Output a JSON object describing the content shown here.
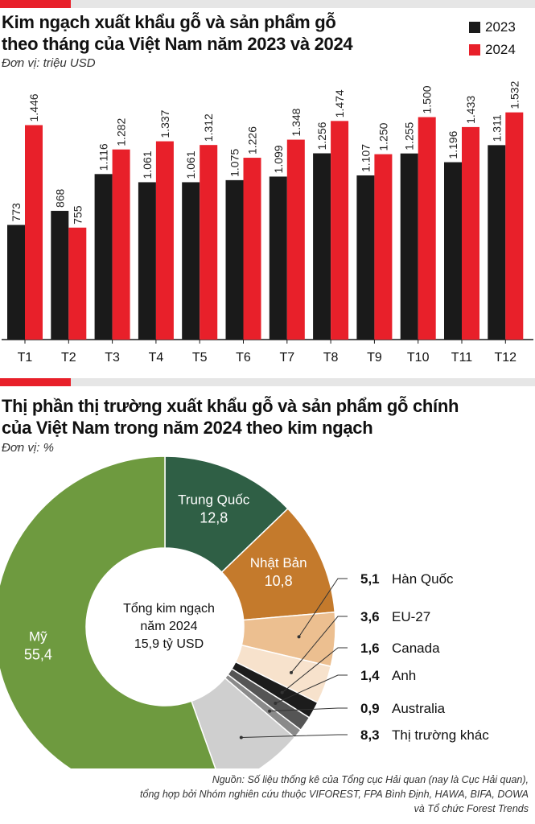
{
  "bar_section": {
    "title_line1": "Kim ngạch xuất khẩu gỗ và sản phẩm gỗ",
    "title_line2": "theo tháng của Việt Nam năm 2023 và 2024",
    "unit": "Đơn vị: triệu USD"
  },
  "pie_section": {
    "title_line1": "Thị phần thị trường xuất khẩu gỗ và sản phẩm gỗ chính",
    "title_line2": "của Việt Nam trong năm 2024 theo kim ngạch",
    "unit": "Đơn vị: %",
    "center_line1": "Tổng kim ngạch",
    "center_line2": "năm 2024",
    "center_line3": "15,9 tỷ USD"
  },
  "source_line1": "Nguồn: Số liệu thống kê của Tổng cục Hải quan (nay là Cục Hải quan),",
  "source_line2": "tổng hợp bởi Nhóm nghiên cứu thuộc VIFOREST, FPA Bình Định, HAWA, BIFA, DOWA",
  "source_line3": "và Tổ chức Forest Trends",
  "colors": {
    "red": "#e8202a",
    "black": "#1a1a1a"
  },
  "chart_data": [
    {
      "type": "bar",
      "title": "Kim ngạch xuất khẩu gỗ và sản phẩm gỗ theo tháng của Việt Nam năm 2023 và 2024",
      "categories": [
        "T1",
        "T2",
        "T3",
        "T4",
        "T5",
        "T6",
        "T7",
        "T8",
        "T9",
        "T10",
        "T11",
        "T12"
      ],
      "series": [
        {
          "name": "2023",
          "color": "#1a1a1a",
          "values": [
            773,
            868,
            1116,
            1061,
            1061,
            1075,
            1099,
            1256,
            1107,
            1255,
            1196,
            1311
          ],
          "labels": [
            "773",
            "868",
            "1.116",
            "1.061",
            "1.061",
            "1.075",
            "1.099",
            "1.256",
            "1.107",
            "1.255",
            "1.196",
            "1.311"
          ]
        },
        {
          "name": "2024",
          "color": "#e8202a",
          "values": [
            1446,
            755,
            1282,
            1337,
            1312,
            1226,
            1348,
            1474,
            1250,
            1500,
            1433,
            1532
          ],
          "labels": [
            "1.446",
            "755",
            "1.282",
            "1.337",
            "1.312",
            "1.226",
            "1.348",
            "1.474",
            "1.250",
            "1.500",
            "1.433",
            "1.532"
          ]
        }
      ],
      "ylim": [
        0,
        1720
      ]
    },
    {
      "type": "pie",
      "title": "Thị phần thị trường xuất khẩu gỗ và sản phẩm gỗ chính của Việt Nam trong năm 2024 theo kim ngạch",
      "slices": [
        {
          "name": "Trung Quốc",
          "value": 12.8,
          "label": "12,8",
          "color": "#2f5f45"
        },
        {
          "name": "Nhật Bản",
          "value": 10.8,
          "label": "10,8",
          "color": "#c47a2c"
        },
        {
          "name": "Hàn Quốc",
          "value": 5.1,
          "label": "5,1",
          "color": "#ecbf90"
        },
        {
          "name": "EU-27",
          "value": 3.6,
          "label": "3,6",
          "color": "#f7e2cc"
        },
        {
          "name": "Canada",
          "value": 1.6,
          "label": "1,6",
          "color": "#1c1c1c"
        },
        {
          "name": "Anh",
          "value": 1.4,
          "label": "1,4",
          "color": "#555555"
        },
        {
          "name": "Australia",
          "value": 0.9,
          "label": "0,9",
          "color": "#8a8a8a"
        },
        {
          "name": "Thị trường khác",
          "value": 8.3,
          "label": "8,3",
          "color": "#cfcfcf"
        },
        {
          "name": "Mỹ",
          "value": 55.4,
          "label": "55,4",
          "color": "#6e9a3f"
        }
      ]
    }
  ]
}
